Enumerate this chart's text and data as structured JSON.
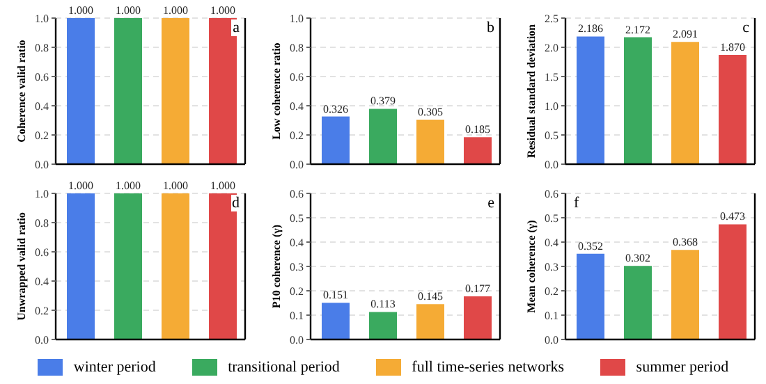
{
  "chart_data": [
    {
      "type": "bar",
      "ylabel": "Coherence valid ratio",
      "categories": [
        null
      ],
      "ylim": [
        0,
        1
      ],
      "yticks": [
        {
          "value": 0,
          "label": "0.0"
        },
        0.2,
        0.4,
        0.6,
        0.8,
        {
          "value": 1,
          "label": "1.0"
        }
      ],
      "grid": "y",
      "legend": "bottom",
      "annotations": [
        "a"
      ],
      "series": [
        {
          "name": "winter period",
          "color": "#4a7de8",
          "values": [
            1
          ],
          "value_labels": [
            "1.000"
          ]
        },
        {
          "name": "transitional period",
          "color": "#3aaa5f",
          "values": [
            1
          ],
          "value_labels": [
            "1.000"
          ]
        },
        {
          "name": "full time-series networks",
          "color": "#f5ab35",
          "values": [
            1
          ],
          "value_labels": [
            "1.000"
          ]
        },
        {
          "name": "summer period",
          "color": "#e04848",
          "values": [
            1
          ],
          "value_labels": [
            "1.000"
          ]
        }
      ]
    },
    {
      "type": "bar",
      "ylabel": "Low coherence ratio",
      "categories": [
        null
      ],
      "ylim": [
        0,
        1
      ],
      "yticks": [
        {
          "value": 0,
          "label": "0.0"
        },
        0.2,
        0.4,
        0.6,
        0.8,
        {
          "value": 1,
          "label": "1.0"
        }
      ],
      "grid": "y",
      "annotations": [
        "b"
      ],
      "series": [
        {
          "color": "#4a7de8",
          "values": [
            0.326
          ],
          "value_labels": [
            "0.326"
          ]
        },
        {
          "color": "#3aaa5f",
          "values": [
            0.379
          ],
          "value_labels": [
            "0.379"
          ]
        },
        {
          "color": "#f5ab35",
          "values": [
            0.305
          ],
          "value_labels": [
            "0.305"
          ]
        },
        {
          "color": "#e04848",
          "values": [
            0.185
          ],
          "value_labels": [
            "0.185"
          ]
        }
      ]
    },
    {
      "type": "bar",
      "ylabel": "Residual standard deviation",
      "categories": [
        null
      ],
      "ylim": [
        0,
        2.5
      ],
      "yticks": [
        {
          "value": 0,
          "label": "0.0"
        },
        0.5,
        {
          "value": 1,
          "label": "1.0"
        },
        1.5,
        {
          "value": 2,
          "label": "2.0"
        },
        2.5
      ],
      "grid": "y",
      "annotations": [
        "c"
      ],
      "series": [
        {
          "color": "#4a7de8",
          "values": [
            2.186
          ],
          "value_labels": [
            "2.186"
          ]
        },
        {
          "color": "#3aaa5f",
          "values": [
            2.172
          ],
          "value_labels": [
            "2.172"
          ]
        },
        {
          "color": "#f5ab35",
          "values": [
            2.091
          ],
          "value_labels": [
            "2.091"
          ]
        },
        {
          "color": "#e04848",
          "values": [
            1.87
          ],
          "value_labels": [
            "1.870"
          ]
        }
      ]
    },
    {
      "type": "bar",
      "ylabel": "Unwrapped valid ratio",
      "categories": [
        null
      ],
      "ylim": [
        0,
        1
      ],
      "yticks": [
        {
          "value": 0,
          "label": "0.0"
        },
        0.2,
        0.4,
        0.6,
        0.8,
        {
          "value": 1,
          "label": "1.0"
        }
      ],
      "grid": "y",
      "annotations": [
        "d"
      ],
      "series": [
        {
          "color": "#4a7de8",
          "values": [
            1
          ],
          "value_labels": [
            "1.000"
          ]
        },
        {
          "color": "#3aaa5f",
          "values": [
            1
          ],
          "value_labels": [
            "1.000"
          ]
        },
        {
          "color": "#f5ab35",
          "values": [
            1
          ],
          "value_labels": [
            "1.000"
          ]
        },
        {
          "color": "#e04848",
          "values": [
            1
          ],
          "value_labels": [
            "1.000"
          ]
        }
      ]
    },
    {
      "type": "bar",
      "ylabel": "P10 coherence (γ)",
      "categories": [
        null
      ],
      "ylim": [
        0,
        0.6
      ],
      "yticks": [
        {
          "value": 0,
          "label": "0.0"
        },
        0.1,
        0.2,
        0.3,
        0.4,
        0.5,
        0.6
      ],
      "grid": "y",
      "annotations": [
        "e"
      ],
      "series": [
        {
          "color": "#4a7de8",
          "values": [
            0.151
          ],
          "value_labels": [
            "0.151"
          ]
        },
        {
          "color": "#3aaa5f",
          "values": [
            0.113
          ],
          "value_labels": [
            "0.113"
          ]
        },
        {
          "color": "#f5ab35",
          "values": [
            0.145
          ],
          "value_labels": [
            "0.145"
          ]
        },
        {
          "color": "#e04848",
          "values": [
            0.177
          ],
          "value_labels": [
            "0.177"
          ]
        }
      ]
    },
    {
      "type": "bar",
      "ylabel": "Mean coherence (γ)",
      "categories": [
        null
      ],
      "ylim": [
        0,
        0.6
      ],
      "yticks": [
        {
          "value": 0,
          "label": "0.0"
        },
        0.1,
        0.2,
        0.3,
        0.4,
        0.5,
        0.6
      ],
      "grid": "y",
      "annotations": [
        "f"
      ],
      "series": [
        {
          "color": "#4a7de8",
          "values": [
            0.352
          ],
          "value_labels": [
            "0.352"
          ]
        },
        {
          "color": "#3aaa5f",
          "values": [
            0.302
          ],
          "value_labels": [
            "0.302"
          ]
        },
        {
          "color": "#f5ab35",
          "values": [
            0.368
          ],
          "value_labels": [
            "0.368"
          ]
        },
        {
          "color": "#e04848",
          "values": [
            0.473
          ],
          "value_labels": [
            "0.473"
          ]
        }
      ]
    }
  ]
}
